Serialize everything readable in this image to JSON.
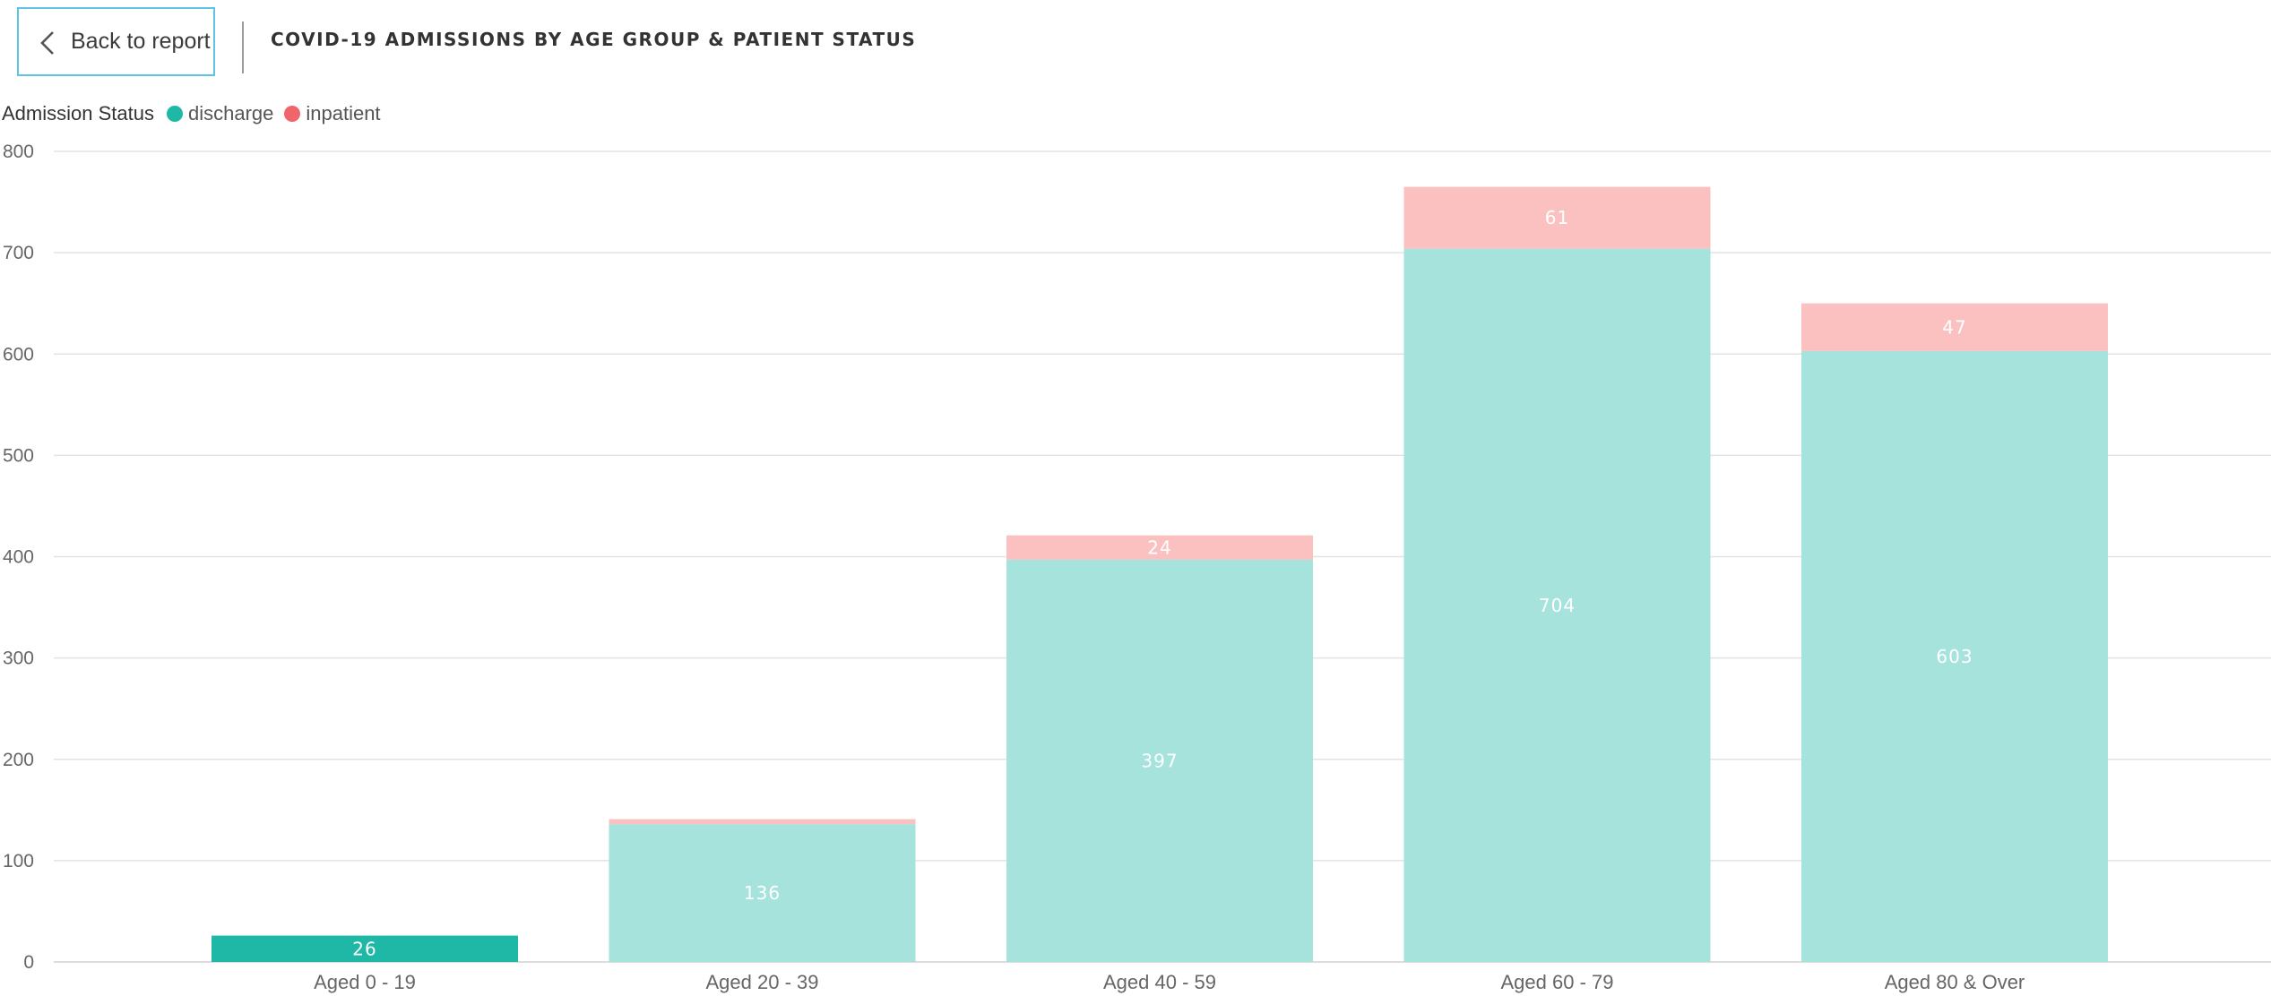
{
  "header": {
    "back_label": "Back to report",
    "title": "COVID-19 ADMISSIONS BY AGE GROUP & PATIENT STATUS"
  },
  "legend": {
    "title": "Admission Status",
    "items": [
      {
        "label": "discharge",
        "color": "#1fb8a6"
      },
      {
        "label": "inpatient",
        "color": "#f0656a"
      }
    ]
  },
  "chart_data": {
    "type": "bar",
    "stacked": true,
    "title": "COVID-19 ADMISSIONS BY AGE GROUP & PATIENT STATUS",
    "xlabel": "",
    "ylabel": "",
    "categories": [
      "Aged 0 - 19",
      "Aged 20 - 39",
      "Aged 40 - 59",
      "Aged 60 - 79",
      "Aged 80 & Over"
    ],
    "series": [
      {
        "name": "discharge",
        "values": [
          26,
          136,
          397,
          704,
          603
        ],
        "color": "#1fb8a6",
        "dim_color": "#a6e3dc"
      },
      {
        "name": "inpatient",
        "values": [
          0,
          5,
          24,
          61,
          47
        ],
        "color": "#f0656a",
        "dim_color": "#fbc1c1"
      }
    ],
    "data_labels": [
      [
        "26",
        "136",
        "397",
        "704",
        "603"
      ],
      [
        "",
        "",
        "24",
        "61",
        "47"
      ]
    ],
    "highlighted_category": "Aged 0 - 19",
    "ylim": [
      0,
      800
    ],
    "yticks": [
      0,
      100,
      200,
      300,
      400,
      500,
      600,
      700,
      800
    ],
    "grid": true,
    "legend_position": "top-left"
  }
}
